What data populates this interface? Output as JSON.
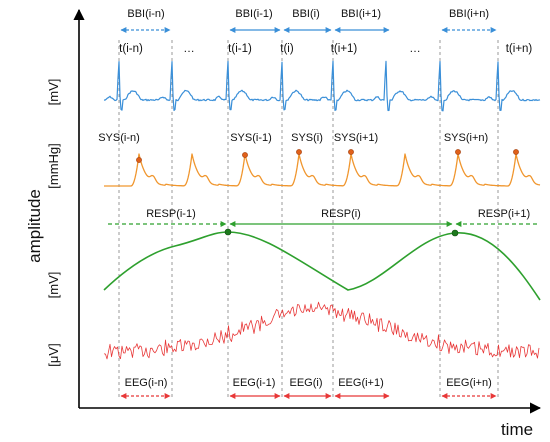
{
  "axes": {
    "y_label": "amplitude",
    "x_label": "time"
  },
  "units": [
    "[mV]",
    "[mmHg]",
    "[mV]",
    "[μV]"
  ],
  "beats": {
    "times": [
      "t(i-n)",
      "…",
      "t(i-1)",
      "t(i)",
      "t(i+1)",
      "…",
      "t(i+n)"
    ],
    "bbi": [
      "BBI(i-n)",
      "BBI(i-1)",
      "BBI(i)",
      "BBI(i+1)",
      "BBI(i+n)"
    ],
    "sys": [
      "SYS(i-n)",
      "SYS(i-1)",
      "SYS(i)",
      "SYS(i+1)",
      "SYS(i+n)"
    ]
  },
  "resp": [
    "RESP(i-1)",
    "RESP(i)",
    "RESP(i+1)"
  ],
  "eeg": [
    "EEG(i-n)",
    "EEG(i-1)",
    "EEG(i)",
    "EEG(i+1)",
    "EEG(i+n)"
  ],
  "colors": {
    "ecg": "#3a8fd8",
    "bp": "#f0962e",
    "bp_marker": "#e0601a",
    "resp": "#2ea02e",
    "resp_marker": "#1d7a1d",
    "eeg": "#e83838",
    "guide": "#9a9a9a",
    "axis": "#000000"
  }
}
